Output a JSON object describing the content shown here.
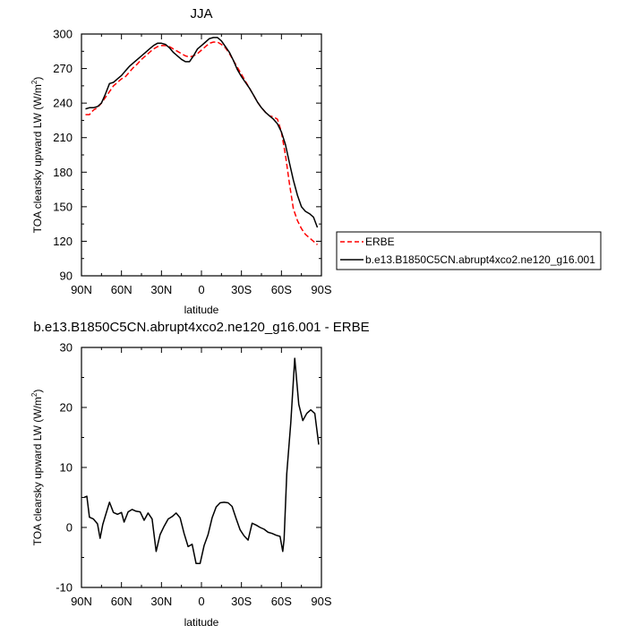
{
  "chart_data": [
    {
      "type": "line",
      "title": "JJA",
      "xlabel": "latitude",
      "ylabel": "TOA clearsky upward LW (W/m",
      "ylabel_sup": "2",
      "ylabel_close": ")",
      "xlim": [
        90,
        -90
      ],
      "ylim": [
        90,
        300
      ],
      "xticks": [
        90,
        60,
        30,
        0,
        -30,
        -60,
        -90
      ],
      "xtick_labels": [
        "90N",
        "60N",
        "30N",
        "0",
        "30S",
        "60S",
        "90S"
      ],
      "yticks": [
        90,
        120,
        150,
        180,
        210,
        240,
        270,
        300
      ],
      "ytick_labels": [
        "90",
        "120",
        "150",
        "180",
        "210",
        "240",
        "270",
        "300"
      ],
      "legend_position": "right",
      "series": [
        {
          "name": "ERBE",
          "color": "#ff0000",
          "dash": "dashed",
          "x": [
            87,
            84,
            81,
            78,
            75,
            72,
            69,
            66,
            63,
            60,
            57,
            54,
            51,
            48,
            45,
            42,
            39,
            36,
            33,
            30,
            27,
            24,
            21,
            18,
            15,
            12,
            9,
            6,
            3,
            0,
            -3,
            -6,
            -9,
            -12,
            -15,
            -18,
            -21,
            -24,
            -27,
            -30,
            -33,
            -36,
            -39,
            -42,
            -45,
            -48,
            -51,
            -54,
            -57,
            -60,
            -63,
            -66,
            -69,
            -72,
            -75,
            -78,
            -81,
            -84,
            -87
          ],
          "y": [
            230,
            230,
            234,
            236,
            240,
            245,
            250,
            255,
            258,
            261,
            263,
            267,
            271,
            274,
            278,
            281,
            284,
            287,
            289,
            290,
            290,
            289,
            287,
            285,
            283,
            281,
            280,
            281,
            283,
            286,
            289,
            292,
            293,
            293,
            291,
            288,
            283,
            277,
            271,
            265,
            259,
            253,
            247,
            241,
            236,
            232,
            229,
            228,
            226,
            215,
            195,
            170,
            148,
            138,
            131,
            126,
            123,
            120,
            117
          ]
        },
        {
          "name": "b.e13.B1850C5CN.abrupt4xco2.ne120_g16.001",
          "color": "#000000",
          "dash": "solid",
          "x": [
            87,
            84,
            81,
            78,
            75,
            72,
            69,
            66,
            63,
            60,
            57,
            54,
            51,
            48,
            45,
            42,
            39,
            36,
            33,
            30,
            27,
            24,
            21,
            18,
            15,
            12,
            9,
            6,
            3,
            0,
            -3,
            -6,
            -9,
            -12,
            -15,
            -18,
            -21,
            -24,
            -27,
            -30,
            -33,
            -36,
            -39,
            -42,
            -45,
            -48,
            -51,
            -54,
            -57,
            -60,
            -63,
            -66,
            -69,
            -72,
            -75,
            -78,
            -81,
            -84,
            -87
          ],
          "y": [
            235,
            236,
            236,
            237,
            240,
            248,
            257,
            258,
            261,
            264,
            268,
            272,
            275,
            278,
            281,
            284,
            287,
            290,
            292,
            292,
            291,
            288,
            284,
            281,
            278,
            276,
            276,
            281,
            287,
            290,
            293,
            296,
            297,
            297,
            294,
            289,
            284,
            277,
            269,
            263,
            258,
            253,
            247,
            241,
            236,
            232,
            229,
            226,
            222,
            215,
            204,
            188,
            173,
            160,
            150,
            146,
            144,
            141,
            132
          ]
        }
      ]
    },
    {
      "type": "line",
      "title": "b.e13.B1850C5CN.abrupt4xco2.ne120_g16.001 - ERBE",
      "xlabel": "latitude",
      "ylabel": "TOA clearsky upward LW (W/m",
      "ylabel_sup": "2",
      "ylabel_close": ")",
      "xlim": [
        90,
        -90
      ],
      "ylim": [
        -10,
        30
      ],
      "xticks": [
        90,
        60,
        30,
        0,
        -30,
        -60,
        -90
      ],
      "xtick_labels": [
        "90N",
        "60N",
        "30N",
        "0",
        "30S",
        "60S",
        "90S"
      ],
      "yticks": [
        -10,
        0,
        10,
        20,
        30
      ],
      "ytick_labels": [
        "-10",
        "0",
        "10",
        "20",
        "30"
      ],
      "series": [
        {
          "color": "#000000",
          "dash": "solid",
          "x": [
            88,
            86,
            84,
            81,
            78,
            76,
            74,
            72,
            69,
            66,
            63,
            60,
            58,
            55,
            52,
            49,
            46,
            43,
            40,
            37,
            34,
            31,
            28,
            25,
            22,
            19,
            16,
            13,
            10,
            7,
            4,
            1,
            -2,
            -5,
            -8,
            -11,
            -14,
            -17,
            -20,
            -23,
            -26,
            -29,
            -32,
            -35,
            -38,
            -41,
            -44,
            -47,
            -50,
            -53,
            -56,
            -59,
            -61,
            -62,
            -64,
            -67,
            -70,
            -73,
            -76,
            -79,
            -82,
            -85,
            -88
          ],
          "y": [
            5.0,
            5.2,
            1.7,
            1.4,
            0.6,
            -1.8,
            0.5,
            2.0,
            4.2,
            2.5,
            2.2,
            2.5,
            0.9,
            2.6,
            3.0,
            2.7,
            2.6,
            1.2,
            2.4,
            1.4,
            -4.0,
            -1.2,
            0.2,
            1.4,
            1.8,
            2.4,
            1.6,
            -1.0,
            -3.2,
            -2.8,
            -6.0,
            -6.0,
            -3.0,
            -1.2,
            1.6,
            3.4,
            4.1,
            4.2,
            4.1,
            3.5,
            1.5,
            -0.4,
            -1.4,
            -2.1,
            0.7,
            0.4,
            0.0,
            -0.3,
            -0.8,
            -1.0,
            -1.3,
            -1.5,
            -4.0,
            -2.0,
            9.0,
            17.5,
            28.2,
            20.5,
            17.8,
            19.0,
            19.6,
            19.0,
            13.8
          ]
        }
      ]
    }
  ]
}
